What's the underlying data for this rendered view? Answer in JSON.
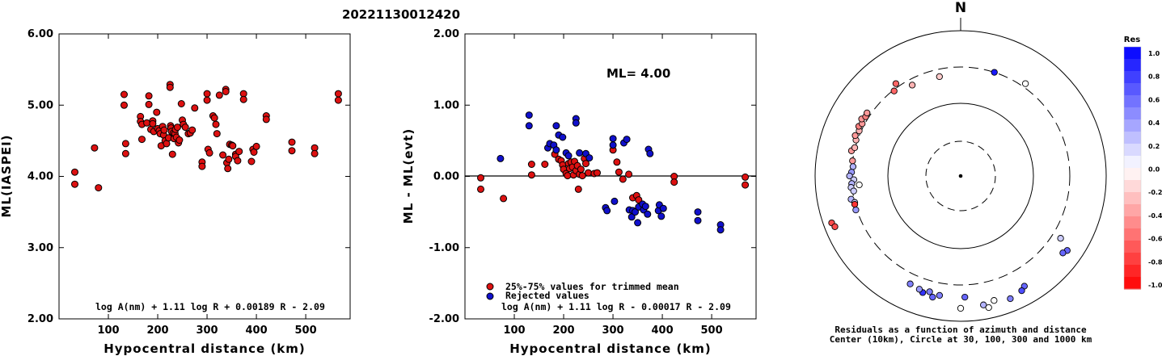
{
  "title": "20221130012420",
  "chart_data": [
    {
      "type": "scatter",
      "ylabel": "ML(IASPEI)",
      "xlabel": "Hypocentral distance (km)",
      "xlim": [
        0,
        590
      ],
      "ylim": [
        2.0,
        6.0
      ],
      "yticks": [
        "6.00",
        "5.00",
        "4.00",
        "3.00",
        "2.00"
      ],
      "xticks": [
        "100",
        "200",
        "300",
        "400",
        "500"
      ],
      "formula": "log A(nm) + 1.11 log R + 0.00189 R - 2.09",
      "marker_color": "#dd1111",
      "points": [
        [
          32,
          4.06
        ],
        [
          32,
          3.89
        ],
        [
          72,
          4.4
        ],
        [
          80,
          3.84
        ],
        [
          132,
          5.15
        ],
        [
          132,
          5.0
        ],
        [
          135,
          4.46
        ],
        [
          135,
          4.32
        ],
        [
          165,
          4.84
        ],
        [
          165,
          4.77
        ],
        [
          168,
          4.73
        ],
        [
          168,
          4.52
        ],
        [
          178,
          4.75
        ],
        [
          182,
          5.13
        ],
        [
          182,
          5.01
        ],
        [
          186,
          4.66
        ],
        [
          190,
          4.78
        ],
        [
          190,
          4.74
        ],
        [
          192,
          4.63
        ],
        [
          198,
          4.9
        ],
        [
          200,
          4.67
        ],
        [
          203,
          4.64
        ],
        [
          205,
          4.6
        ],
        [
          207,
          4.43
        ],
        [
          210,
          4.7
        ],
        [
          212,
          4.58
        ],
        [
          213,
          4.65
        ],
        [
          215,
          4.5
        ],
        [
          218,
          4.46
        ],
        [
          222,
          4.54
        ],
        [
          225,
          5.29
        ],
        [
          225,
          5.25
        ],
        [
          226,
          4.71
        ],
        [
          227,
          4.68
        ],
        [
          228,
          4.63
        ],
        [
          230,
          4.31
        ],
        [
          232,
          4.61
        ],
        [
          233,
          4.53
        ],
        [
          235,
          4.6
        ],
        [
          236,
          4.66
        ],
        [
          238,
          4.55
        ],
        [
          240,
          4.69
        ],
        [
          242,
          4.47
        ],
        [
          244,
          4.51
        ],
        [
          248,
          5.02
        ],
        [
          250,
          4.79
        ],
        [
          252,
          4.73
        ],
        [
          256,
          4.69
        ],
        [
          262,
          4.6
        ],
        [
          266,
          4.61
        ],
        [
          270,
          4.65
        ],
        [
          275,
          4.96
        ],
        [
          290,
          4.2
        ],
        [
          290,
          4.14
        ],
        [
          300,
          5.16
        ],
        [
          300,
          5.07
        ],
        [
          302,
          4.38
        ],
        [
          305,
          4.33
        ],
        [
          312,
          4.85
        ],
        [
          315,
          4.82
        ],
        [
          318,
          4.73
        ],
        [
          320,
          4.6
        ],
        [
          325,
          5.14
        ],
        [
          332,
          4.3
        ],
        [
          338,
          5.22
        ],
        [
          338,
          5.19
        ],
        [
          340,
          4.19
        ],
        [
          342,
          4.11
        ],
        [
          344,
          4.24
        ],
        [
          346,
          4.45
        ],
        [
          350,
          4.44
        ],
        [
          352,
          4.43
        ],
        [
          358,
          4.31
        ],
        [
          358,
          4.28
        ],
        [
          362,
          4.22
        ],
        [
          365,
          4.35
        ],
        [
          374,
          5.16
        ],
        [
          374,
          5.08
        ],
        [
          390,
          4.21
        ],
        [
          393,
          4.38
        ],
        [
          395,
          4.34
        ],
        [
          400,
          4.42
        ],
        [
          420,
          4.85
        ],
        [
          420,
          4.8
        ],
        [
          472,
          4.48
        ],
        [
          472,
          4.36
        ],
        [
          518,
          4.4
        ],
        [
          518,
          4.32
        ],
        [
          566,
          5.16
        ],
        [
          566,
          5.07
        ]
      ]
    },
    {
      "type": "scatter",
      "ylabel": "ML - ML(evt)",
      "xlabel": "Hypocentral distance (km)",
      "xlim": [
        0,
        590
      ],
      "ylim": [
        -2.0,
        2.0
      ],
      "yticks": [
        "2.00",
        "1.00",
        "0.00",
        "-1.00",
        "-2.00"
      ],
      "xticks": [
        "100",
        "200",
        "300",
        "400",
        "500"
      ],
      "annotation": "ML= 4.00",
      "formula": "log A(nm) + 1.11 log R - 0.00017 R - 2.09",
      "legend": {
        "placement": "bottom-left",
        "items": [
          {
            "label": "25%-75% values for trimmed mean",
            "color": "#dd1111"
          },
          {
            "label": "Rejected values",
            "color": "#1010cc"
          }
        ]
      },
      "series": [
        {
          "name": "25%-75% values for trimmed mean",
          "color": "#dd1111",
          "points": [
            [
              32,
              -0.02
            ],
            [
              32,
              -0.18
            ],
            [
              78,
              -0.31
            ],
            [
              135,
              0.17
            ],
            [
              135,
              0.02
            ],
            [
              162,
              0.17
            ],
            [
              182,
              0.31
            ],
            [
              190,
              0.24
            ],
            [
              195,
              0.22
            ],
            [
              198,
              0.16
            ],
            [
              200,
              0.1
            ],
            [
              205,
              0.04
            ],
            [
              208,
              0.01
            ],
            [
              210,
              0.18
            ],
            [
              212,
              0.11
            ],
            [
              215,
              0.2
            ],
            [
              218,
              0.13
            ],
            [
              220,
              0.02
            ],
            [
              222,
              0.21
            ],
            [
              225,
              0.08
            ],
            [
              228,
              0.15
            ],
            [
              230,
              -0.18
            ],
            [
              232,
              0.03
            ],
            [
              235,
              0.1
            ],
            [
              238,
              0.01
            ],
            [
              242,
              0.25
            ],
            [
              245,
              0.18
            ],
            [
              250,
              0.05
            ],
            [
              262,
              0.04
            ],
            [
              268,
              0.05
            ],
            [
              300,
              0.37
            ],
            [
              308,
              0.2
            ],
            [
              312,
              0.06
            ],
            [
              320,
              -0.04
            ],
            [
              332,
              0.03
            ],
            [
              340,
              -0.3
            ],
            [
              348,
              -0.27
            ],
            [
              352,
              -0.33
            ],
            [
              424,
              0.0
            ],
            [
              424,
              -0.08
            ],
            [
              568,
              -0.01
            ],
            [
              568,
              -0.12
            ]
          ]
        },
        {
          "name": "Rejected values",
          "color": "#1010cc",
          "points": [
            [
              72,
              0.25
            ],
            [
              130,
              0.86
            ],
            [
              130,
              0.71
            ],
            [
              168,
              0.4
            ],
            [
              172,
              0.46
            ],
            [
              180,
              0.44
            ],
            [
              185,
              0.71
            ],
            [
              185,
              0.37
            ],
            [
              190,
              0.58
            ],
            [
              198,
              0.55
            ],
            [
              205,
              0.33
            ],
            [
              210,
              0.29
            ],
            [
              225,
              0.81
            ],
            [
              225,
              0.75
            ],
            [
              232,
              0.33
            ],
            [
              245,
              0.32
            ],
            [
              252,
              0.26
            ],
            [
              285,
              -0.44
            ],
            [
              288,
              -0.48
            ],
            [
              300,
              0.53
            ],
            [
              300,
              0.44
            ],
            [
              303,
              -0.35
            ],
            [
              322,
              0.47
            ],
            [
              328,
              0.52
            ],
            [
              333,
              -0.47
            ],
            [
              338,
              -0.57
            ],
            [
              340,
              -0.48
            ],
            [
              345,
              -0.5
            ],
            [
              350,
              -0.65
            ],
            [
              352,
              -0.43
            ],
            [
              360,
              -0.39
            ],
            [
              362,
              -0.47
            ],
            [
              366,
              -0.42
            ],
            [
              370,
              -0.53
            ],
            [
              372,
              0.38
            ],
            [
              375,
              0.32
            ],
            [
              392,
              -0.48
            ],
            [
              394,
              -0.4
            ],
            [
              398,
              -0.56
            ],
            [
              402,
              -0.45
            ],
            [
              472,
              -0.5
            ],
            [
              472,
              -0.62
            ],
            [
              518,
              -0.68
            ],
            [
              518,
              -0.75
            ]
          ]
        }
      ]
    },
    {
      "type": "scatter",
      "subtype": "polar-residuals",
      "north_label": "N",
      "caption_line1": "Residuals as a function of azimuth and distance",
      "caption_line2": "Center (10km), Circle at 30, 100, 300 and 1000 km",
      "rings_km": [
        30,
        100,
        300,
        1000
      ],
      "points_azimuth_deg_distance_km": [
        [
          325,
          340,
          -0.6
        ],
        [
          322,
          290,
          -0.6
        ],
        [
          332,
          250,
          -0.3
        ],
        [
          348,
          240,
          -0.2
        ],
        [
          18,
          300,
          0.9
        ],
        [
          35,
          340,
          0.0
        ],
        [
          278,
          300,
          -0.4
        ],
        [
          283,
          330,
          -0.4
        ],
        [
          285,
          305,
          -0.3
        ],
        [
          289,
          315,
          -0.3
        ],
        [
          291,
          340,
          -0.4
        ],
        [
          294,
          320,
          -0.3
        ],
        [
          296,
          345,
          -0.5
        ],
        [
          298,
          325,
          -0.4
        ],
        [
          300,
          355,
          -0.4
        ],
        [
          302,
          330,
          -0.5
        ],
        [
          304,
          340,
          -0.4
        ],
        [
          275,
          290,
          0.3
        ],
        [
          272,
          300,
          0.4
        ],
        [
          270,
          320,
          0.3
        ],
        [
          268,
          280,
          0.2
        ],
        [
          266,
          300,
          0.3
        ],
        [
          264,
          310,
          0.2
        ],
        [
          262,
          290,
          0.2
        ],
        [
          258,
          330,
          0.3
        ],
        [
          256,
          300,
          0.2
        ],
        [
          255,
          305,
          -0.8
        ],
        [
          265,
          240,
          0.0
        ],
        [
          252,
          310,
          0.4
        ],
        [
          250,
          760,
          -0.7
        ],
        [
          248,
          720,
          -0.7
        ],
        [
          122,
          400,
          0.2
        ],
        [
          125,
          600,
          0.6
        ],
        [
          127,
          560,
          0.6
        ],
        [
          150,
          550,
          0.6
        ],
        [
          152,
          600,
          0.7
        ],
        [
          158,
          650,
          0.5
        ],
        [
          165,
          580,
          0.0
        ],
        [
          170,
          620,
          0.3
        ],
        [
          178,
          450,
          0.6
        ],
        [
          190,
          450,
          0.5
        ],
        [
          193,
          500,
          0.6
        ],
        [
          195,
          430,
          0.5
        ],
        [
          198,
          470,
          0.8
        ],
        [
          200,
          440,
          0.4
        ],
        [
          205,
          420,
          0.5
        ],
        [
          168,
          700,
          0.0
        ],
        [
          180,
          650,
          0.0
        ]
      ],
      "colorbar": {
        "title": "Res",
        "labels": [
          "1.0",
          "0.8",
          "0.6",
          "0.4",
          "0.2",
          "0.0",
          "-0.2",
          "-0.4",
          "-0.6",
          "-0.8",
          "-1.0"
        ],
        "positive_color": "#0000ff",
        "negative_color": "#ff0000"
      }
    }
  ]
}
